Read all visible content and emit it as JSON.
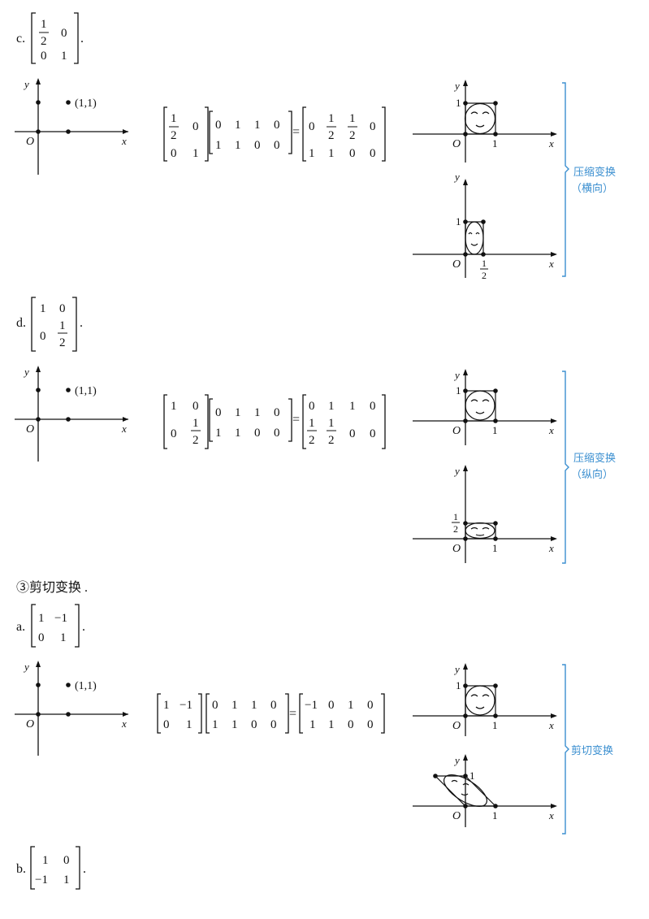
{
  "case_c": {
    "label": "c.",
    "matrix": [
      "1",
      "2",
      "0",
      "0",
      "1"
    ],
    "mul_left": [
      "1",
      "2",
      "0",
      "0",
      "1"
    ],
    "vectors": [
      "0",
      "1",
      "1",
      "0",
      "1",
      "1",
      "0",
      "0"
    ],
    "result_top": [
      "0",
      "1",
      "2",
      "1",
      "2",
      "0"
    ],
    "result_bottom": [
      "1",
      "1",
      "0",
      "0"
    ],
    "point_label": "(1,1)",
    "annotation_line1": "压缩变换",
    "annotation_line2": "（横向）"
  },
  "case_d": {
    "label": "d.",
    "point_label": "(1,1)",
    "annotation_line1": "压缩变换",
    "annotation_line2": "（纵向）"
  },
  "section3": {
    "heading": "③剪切变换 ."
  },
  "case_a": {
    "label": "a.",
    "point_label": "(1,1)",
    "annotation": "剪切变换"
  },
  "case_b": {
    "label": "b."
  },
  "axes": {
    "x": "x",
    "y": "y",
    "origin": "O",
    "one": "1",
    "half_num": "1",
    "half_den": "2",
    "minus_one": "−1",
    "zero": "0"
  },
  "colors": {
    "annotation": "#3b8fd0",
    "ink": "#111111"
  }
}
